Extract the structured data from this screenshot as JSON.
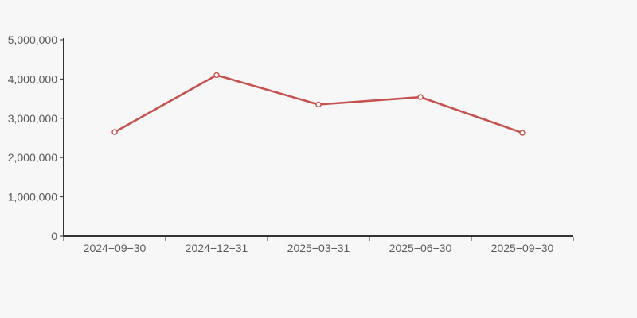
{
  "chart_data": {
    "type": "line",
    "categories": [
      "2024−09−30",
      "2024−12−31",
      "2025−03−31",
      "2025−06−30",
      "2025−09−30"
    ],
    "values": [
      2650000,
      4100000,
      3350000,
      3540000,
      2630000
    ],
    "title": "",
    "xlabel": "",
    "ylabel": "",
    "ylim": [
      0,
      5000000
    ],
    "y_ticks": [
      0,
      1000000,
      2000000,
      3000000,
      4000000,
      5000000
    ],
    "y_tick_labels": [
      "0",
      "1,000,000",
      "2,000,000",
      "3,000,000",
      "4,000,000",
      "5,000,000"
    ],
    "grid": false,
    "legend": false,
    "marker": "open-circle",
    "line_color": "#c5524e",
    "marker_fill": "#ffffff",
    "background_color": "#f7f7f7",
    "axis_color": "#333333",
    "label_color": "#595959"
  }
}
